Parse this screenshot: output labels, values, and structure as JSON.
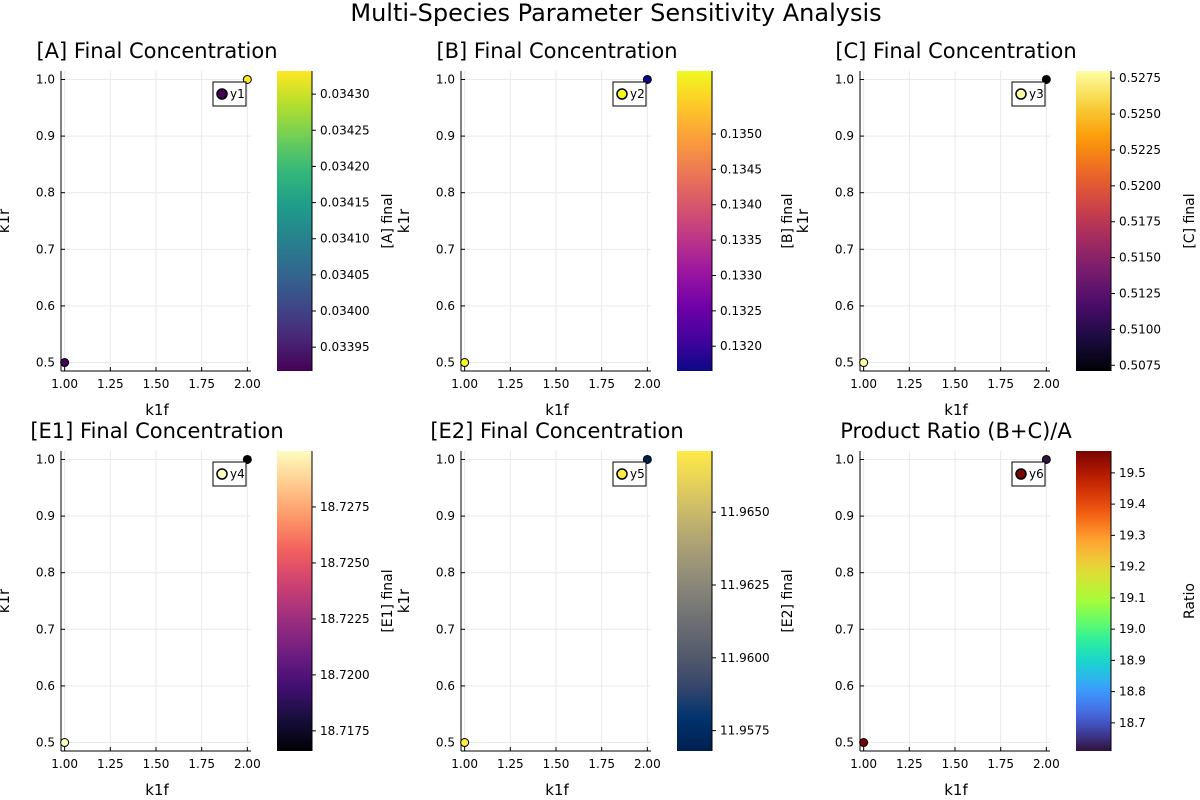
{
  "title": "Multi-Species Parameter Sensitivity Analysis",
  "chart_data": [
    {
      "type": "scatter",
      "title": "[A] Final Concentration",
      "xlabel": "k1f",
      "ylabel": "k1r",
      "colorbar_label": "[A] final",
      "colormap": "viridis",
      "xlim": [
        0.98,
        2.02
      ],
      "ylim": [
        0.485,
        1.015
      ],
      "xticks": [
        "1.00",
        "1.25",
        "1.50",
        "1.75",
        "2.00"
      ],
      "yticks": [
        "0.5",
        "0.6",
        "0.7",
        "0.8",
        "0.9",
        "1.0"
      ],
      "clim": [
        0.033917,
        0.034332
      ],
      "cticks": [
        "0.03395",
        "0.03400",
        "0.03405",
        "0.03410",
        "0.03415",
        "0.03420",
        "0.03425",
        "0.03430"
      ],
      "legend": "y1",
      "legend_color": 0.0,
      "grid": true,
      "points": [
        {
          "x": 1.0,
          "y": 0.5,
          "c": 0.03392
        },
        {
          "x": 2.0,
          "y": 1.0,
          "c": 0.03433
        }
      ]
    },
    {
      "type": "scatter",
      "title": "[B] Final Concentration",
      "xlabel": "k1f",
      "ylabel": "k1r",
      "colorbar_label": "[B] final",
      "colormap": "plasma",
      "xlim": [
        0.98,
        2.02
      ],
      "ylim": [
        0.485,
        1.015
      ],
      "xticks": [
        "1.00",
        "1.25",
        "1.50",
        "1.75",
        "2.00"
      ],
      "yticks": [
        "0.5",
        "0.6",
        "0.7",
        "0.8",
        "0.9",
        "1.0"
      ],
      "clim": [
        0.13165,
        0.13589
      ],
      "cticks": [
        "0.1320",
        "0.1325",
        "0.1330",
        "0.1335",
        "0.1340",
        "0.1345",
        "0.1350"
      ],
      "legend": "y2",
      "legend_color": 1.0,
      "grid": true,
      "points": [
        {
          "x": 1.0,
          "y": 0.5,
          "c": 0.13589
        },
        {
          "x": 2.0,
          "y": 1.0,
          "c": 0.13165
        }
      ]
    },
    {
      "type": "scatter",
      "title": "[C] Final Concentration",
      "xlabel": "k1f",
      "ylabel": "k1r",
      "colorbar_label": "[C] final",
      "colormap": "inferno",
      "xlim": [
        0.98,
        2.02
      ],
      "ylim": [
        0.485,
        1.015
      ],
      "xticks": [
        "1.00",
        "1.25",
        "1.50",
        "1.75",
        "2.00"
      ],
      "yticks": [
        "0.5",
        "0.6",
        "0.7",
        "0.8",
        "0.9",
        "1.0"
      ],
      "clim": [
        0.5071,
        0.528
      ],
      "cticks": [
        "0.5075",
        "0.5100",
        "0.5125",
        "0.5150",
        "0.5175",
        "0.5200",
        "0.5225",
        "0.5250",
        "0.5275"
      ],
      "legend": "y3",
      "legend_color": 1.0,
      "grid": true,
      "points": [
        {
          "x": 1.0,
          "y": 0.5,
          "c": 0.528
        },
        {
          "x": 2.0,
          "y": 1.0,
          "c": 0.5071
        }
      ]
    },
    {
      "type": "scatter",
      "title": "[E1] Final Concentration",
      "xlabel": "k1f",
      "ylabel": "k1r",
      "colorbar_label": "[E1] final",
      "colormap": "magma",
      "xlim": [
        0.98,
        2.02
      ],
      "ylim": [
        0.485,
        1.015
      ],
      "xticks": [
        "1.00",
        "1.25",
        "1.50",
        "1.75",
        "2.00"
      ],
      "yticks": [
        "0.5",
        "0.6",
        "0.7",
        "0.8",
        "0.9",
        "1.0"
      ],
      "clim": [
        18.7166,
        18.73
      ],
      "cticks": [
        "18.7175",
        "18.7200",
        "18.7225",
        "18.7250",
        "18.7275"
      ],
      "legend": "y4",
      "legend_color": 1.0,
      "grid": true,
      "points": [
        {
          "x": 1.0,
          "y": 0.5,
          "c": 18.73
        },
        {
          "x": 2.0,
          "y": 1.0,
          "c": 18.7166
        }
      ]
    },
    {
      "type": "scatter",
      "title": "[E2] Final Concentration",
      "xlabel": "k1f",
      "ylabel": "k1r",
      "colorbar_label": "[E2] final",
      "colormap": "cividis",
      "xlim": [
        0.98,
        2.02
      ],
      "ylim": [
        0.485,
        1.015
      ],
      "xticks": [
        "1.00",
        "1.25",
        "1.50",
        "1.75",
        "2.00"
      ],
      "yticks": [
        "0.5",
        "0.6",
        "0.7",
        "0.8",
        "0.9",
        "1.0"
      ],
      "clim": [
        11.9568,
        11.9671
      ],
      "cticks": [
        "11.9575",
        "11.9600",
        "11.9625",
        "11.9650"
      ],
      "legend": "y5",
      "legend_color": 1.0,
      "grid": true,
      "points": [
        {
          "x": 1.0,
          "y": 0.5,
          "c": 11.9671
        },
        {
          "x": 2.0,
          "y": 1.0,
          "c": 11.9568
        }
      ]
    },
    {
      "type": "scatter",
      "title": "Product Ratio (B+C)/A",
      "xlabel": "k1f",
      "ylabel": "",
      "colorbar_label": "Ratio",
      "colormap": "turbo",
      "xlim": [
        0.98,
        2.02
      ],
      "ylim": [
        0.485,
        1.015
      ],
      "xticks": [
        "1.00",
        "1.25",
        "1.50",
        "1.75",
        "2.00"
      ],
      "yticks": [
        "0.5",
        "0.6",
        "0.7",
        "0.8",
        "0.9",
        "1.0"
      ],
      "clim": [
        18.61,
        19.57
      ],
      "cticks": [
        "18.7",
        "18.8",
        "18.9",
        "19.0",
        "19.1",
        "19.2",
        "19.3",
        "19.4",
        "19.5"
      ],
      "legend": "y6",
      "legend_color": 1.0,
      "grid": true,
      "points": [
        {
          "x": 1.0,
          "y": 0.5,
          "c": 19.57
        },
        {
          "x": 2.0,
          "y": 1.0,
          "c": 18.61
        }
      ]
    }
  ]
}
